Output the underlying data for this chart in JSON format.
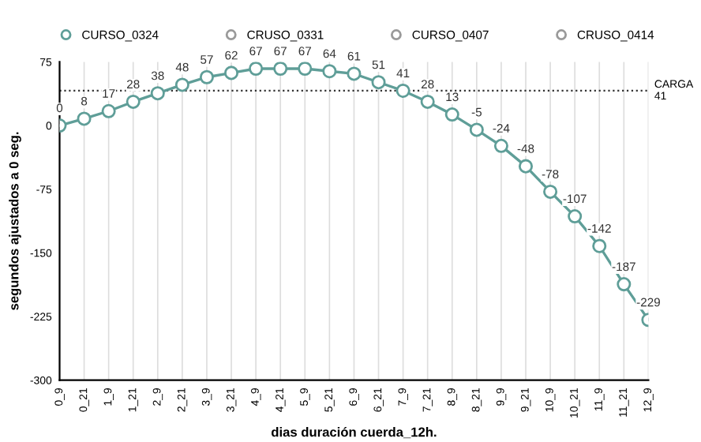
{
  "chart_data": {
    "type": "line",
    "xlabel": "dias duración cuerda_12h.",
    "ylabel": "segundos ajustados a 0 seg.",
    "categories": [
      "0_9",
      "0_21",
      "1_9",
      "1_21",
      "2_9",
      "2_21",
      "3_9",
      "3_21",
      "4_9",
      "4_21",
      "5_9",
      "5_21",
      "6_9",
      "6_21",
      "7_9",
      "7_21",
      "8_9",
      "8_21",
      "9_9",
      "9_21",
      "10_9",
      "10_21",
      "11_9",
      "11_21",
      "12_9"
    ],
    "series": [
      {
        "name": "CURSO_0324",
        "color": "#5f9e98",
        "values": [
          0,
          8,
          17,
          28,
          38,
          48,
          57,
          62,
          67,
          67,
          67,
          64,
          61,
          51,
          41,
          28,
          13,
          -5,
          -24,
          -48,
          -78,
          -107,
          -142,
          -187,
          -229
        ]
      },
      {
        "name": "CRUSO_0331",
        "color": "#9a9a9a",
        "values": [
          null,
          null,
          null,
          null,
          null,
          null,
          null,
          null,
          null,
          null,
          null,
          null,
          null,
          null,
          null,
          null,
          null,
          null,
          null,
          null,
          null,
          null,
          null,
          null,
          null
        ]
      },
      {
        "name": "CURSO_0407",
        "color": "#9a9a9a",
        "values": [
          null,
          null,
          null,
          null,
          null,
          null,
          null,
          null,
          null,
          null,
          null,
          null,
          null,
          null,
          null,
          null,
          null,
          null,
          null,
          null,
          null,
          null,
          null,
          null,
          null
        ]
      },
      {
        "name": "CRUSO_0414",
        "color": "#9a9a9a",
        "values": [
          null,
          null,
          null,
          null,
          null,
          null,
          null,
          null,
          null,
          null,
          null,
          null,
          null,
          null,
          null,
          null,
          null,
          null,
          null,
          null,
          null,
          null,
          null,
          null,
          null
        ]
      }
    ],
    "ylim": [
      -300,
      75
    ],
    "yticks": [
      75,
      0,
      -75,
      -150,
      -225,
      -300
    ],
    "ref_lines": [
      {
        "axis": "y",
        "value": 41,
        "label": "CARGA\n41",
        "line_style": "dotted",
        "color": "#333333"
      }
    ],
    "data_labels": true,
    "grid": "x",
    "legend": "top",
    "marker": "circle",
    "line_style": "solid"
  }
}
